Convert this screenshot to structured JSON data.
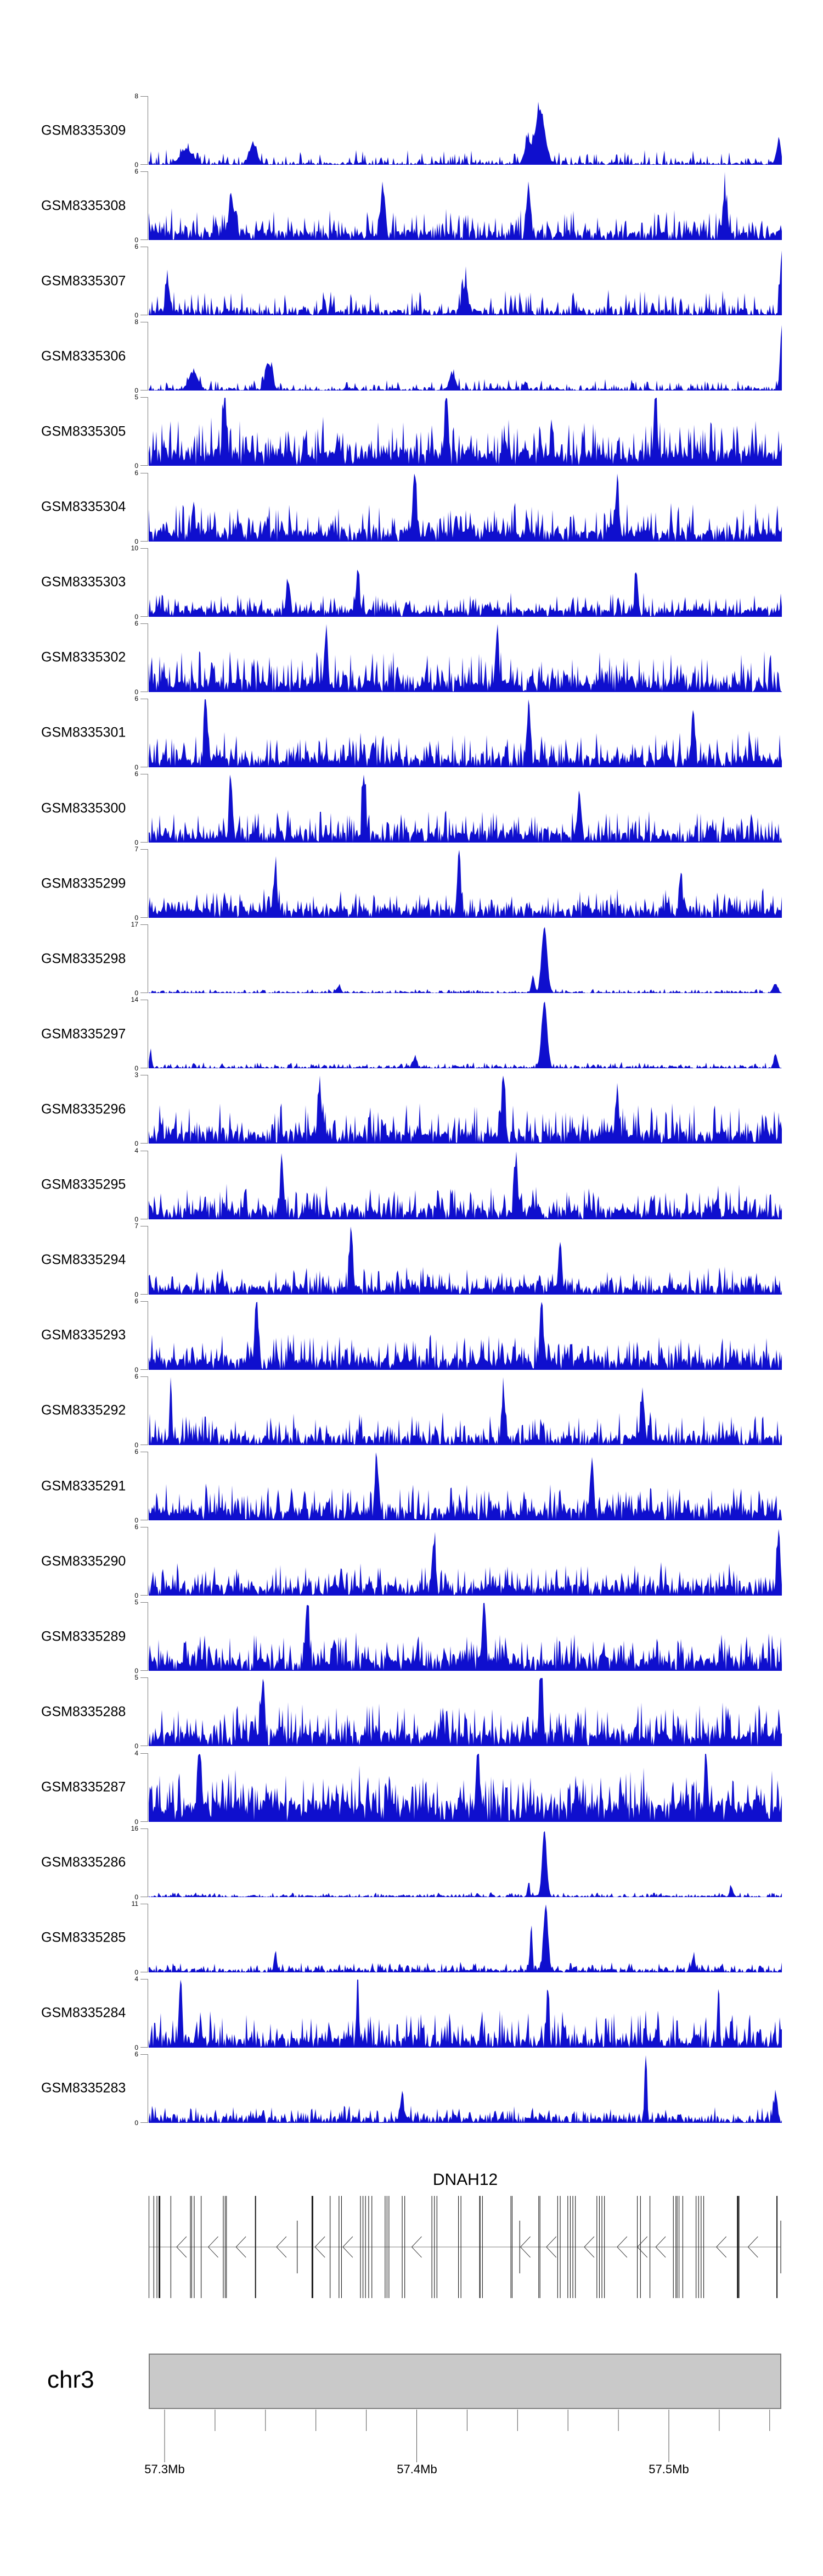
{
  "chart_data": {
    "type": "area",
    "title": "",
    "description": "Stacked genomic read-coverage tracks (27 GEO samples) over the DNAH12 locus on chr3, with per-track y-axis maxima, a gene exon-structure track (minus strand), a gray chromosome ideogram bar and a genomic coordinate axis.",
    "signal_color": "#0f0fce",
    "axis_color": "#808080",
    "region": {
      "chromosome_label": "chr3",
      "tick_labels": [
        "57.3Mb",
        "57.4Mb",
        "57.5Mb"
      ],
      "major_ticks_mb": [
        57.3,
        57.4,
        57.5
      ],
      "minor_tick_interval_mb": 0.02,
      "xlim_mb": [
        57.294,
        57.545
      ]
    },
    "tracks": [
      {
        "label": "GSM8335309",
        "ymax": 8,
        "ymin": 0,
        "seed": 114,
        "base": 0.32,
        "amp": 1.5,
        "gap": 0.38,
        "peaks": [
          [
            0.618,
            6.2,
            9
          ],
          [
            0.598,
            2.6,
            5
          ],
          [
            0.165,
            2.3,
            7
          ],
          [
            0.06,
            1.6,
            12
          ],
          [
            0.995,
            2.6,
            4
          ]
        ]
      },
      {
        "label": "GSM8335308",
        "ymax": 6,
        "ymin": 0,
        "seed": 127,
        "base": 0.75,
        "amp": 2.1,
        "gap": 0.15,
        "peaks": [
          [
            0.37,
            4.3,
            4
          ],
          [
            0.13,
            3.8,
            4
          ],
          [
            0.6,
            4.0,
            4
          ],
          [
            0.91,
            3.6,
            4
          ]
        ]
      },
      {
        "label": "GSM8335307",
        "ymax": 6,
        "ymin": 0,
        "seed": 140,
        "base": 0.55,
        "amp": 1.8,
        "gap": 0.3,
        "peaks": [
          [
            1.0,
            5.6,
            3
          ],
          [
            0.03,
            2.6,
            4
          ],
          [
            0.5,
            2.5,
            5
          ]
        ]
      },
      {
        "label": "GSM8335306",
        "ymax": 8,
        "ymin": 0,
        "seed": 153,
        "base": 0.3,
        "amp": 1.1,
        "gap": 0.4,
        "peaks": [
          [
            1.0,
            7.6,
            3
          ],
          [
            0.19,
            2.9,
            6
          ],
          [
            0.07,
            2.0,
            8
          ],
          [
            0.48,
            1.6,
            6
          ]
        ]
      },
      {
        "label": "GSM8335305",
        "ymax": 5,
        "ymin": 0,
        "seed": 166,
        "base": 1.15,
        "amp": 2.5,
        "gap": 0.08,
        "peaks": [
          [
            0.12,
            4.4,
            3
          ],
          [
            0.47,
            4.6,
            3
          ],
          [
            0.8,
            4.2,
            3
          ]
        ]
      },
      {
        "label": "GSM8335304",
        "ymax": 6,
        "ymin": 0,
        "seed": 179,
        "base": 1.05,
        "amp": 2.5,
        "gap": 0.1,
        "peaks": [
          [
            0.42,
            5.3,
            3
          ],
          [
            0.74,
            4.6,
            3
          ]
        ]
      },
      {
        "label": "GSM8335303",
        "ymax": 10,
        "ymin": 0,
        "seed": 192,
        "base": 1.15,
        "amp": 2.5,
        "gap": 0.1,
        "peaks": [
          [
            0.33,
            6.2,
            3
          ],
          [
            0.77,
            5.6,
            3
          ],
          [
            0.22,
            5.0,
            3
          ]
        ]
      },
      {
        "label": "GSM8335302",
        "ymax": 6,
        "ymin": 0,
        "seed": 205,
        "base": 1.05,
        "amp": 2.7,
        "gap": 0.1,
        "peaks": [
          [
            0.55,
            5.0,
            3
          ],
          [
            0.28,
            4.6,
            3
          ]
        ]
      },
      {
        "label": "GSM8335301",
        "ymax": 6,
        "ymin": 0,
        "seed": 218,
        "base": 0.95,
        "amp": 2.3,
        "gap": 0.12,
        "peaks": [
          [
            0.09,
            5.6,
            3
          ],
          [
            0.6,
            5.2,
            3
          ],
          [
            0.86,
            4.6,
            3
          ]
        ]
      },
      {
        "label": "GSM8335300",
        "ymax": 6,
        "ymin": 0,
        "seed": 231,
        "base": 0.9,
        "amp": 2.1,
        "gap": 0.15,
        "peaks": [
          [
            0.34,
            5.4,
            3
          ],
          [
            0.13,
            4.6,
            3
          ],
          [
            0.68,
            4.2,
            3
          ]
        ]
      },
      {
        "label": "GSM8335299",
        "ymax": 7,
        "ymin": 0,
        "seed": 244,
        "base": 0.95,
        "amp": 2.1,
        "gap": 0.12,
        "peaks": [
          [
            0.49,
            6.4,
            3
          ],
          [
            0.2,
            4.4,
            3
          ],
          [
            0.84,
            4.2,
            3
          ]
        ]
      },
      {
        "label": "GSM8335298",
        "ymax": 17,
        "ymin": 0,
        "seed": 257,
        "base": 0.35,
        "amp": 0.75,
        "gap": 0.3,
        "peaks": [
          [
            0.625,
            16.3,
            5
          ],
          [
            0.607,
            3.8,
            3
          ],
          [
            0.99,
            2.2,
            4
          ],
          [
            0.3,
            1.4,
            4
          ]
        ]
      },
      {
        "label": "GSM8335297",
        "ymax": 14,
        "ymin": 0,
        "seed": 270,
        "base": 0.45,
        "amp": 0.95,
        "gap": 0.3,
        "peaks": [
          [
            0.625,
            13.4,
            5
          ],
          [
            0.003,
            3.8,
            2
          ],
          [
            0.99,
            2.6,
            3
          ],
          [
            0.42,
            1.8,
            4
          ]
        ]
      },
      {
        "label": "GSM8335296",
        "ymax": 3,
        "ymin": 0,
        "seed": 283,
        "base": 0.55,
        "amp": 1.3,
        "gap": 0.15,
        "peaks": [
          [
            0.56,
            2.7,
            3
          ],
          [
            0.27,
            2.3,
            3
          ],
          [
            0.74,
            2.2,
            3
          ]
        ]
      },
      {
        "label": "GSM8335295",
        "ymax": 4,
        "ymin": 0,
        "seed": 296,
        "base": 0.65,
        "amp": 1.5,
        "gap": 0.15,
        "peaks": [
          [
            0.21,
            3.2,
            3
          ],
          [
            0.58,
            3.0,
            3
          ]
        ]
      },
      {
        "label": "GSM8335294",
        "ymax": 7,
        "ymin": 0,
        "seed": 309,
        "base": 0.95,
        "amp": 2.1,
        "gap": 0.12,
        "peaks": [
          [
            0.32,
            6.4,
            3
          ],
          [
            0.65,
            4.8,
            3
          ]
        ]
      },
      {
        "label": "GSM8335293",
        "ymax": 6,
        "ymin": 0,
        "seed": 322,
        "base": 1.05,
        "amp": 2.3,
        "gap": 0.1,
        "peaks": [
          [
            0.17,
            5.2,
            3
          ],
          [
            0.62,
            5.0,
            3
          ]
        ]
      },
      {
        "label": "GSM8335292",
        "ymax": 6,
        "ymin": 0,
        "seed": 335,
        "base": 0.85,
        "amp": 2.1,
        "gap": 0.15,
        "peaks": [
          [
            0.035,
            5.6,
            2
          ],
          [
            0.56,
            4.4,
            3
          ],
          [
            0.78,
            4.2,
            3
          ]
        ]
      },
      {
        "label": "GSM8335291",
        "ymax": 6,
        "ymin": 0,
        "seed": 348,
        "base": 1.05,
        "amp": 2.3,
        "gap": 0.1,
        "peaks": [
          [
            0.36,
            5.2,
            3
          ],
          [
            0.7,
            4.8,
            3
          ]
        ]
      },
      {
        "label": "GSM8335290",
        "ymax": 6,
        "ymin": 0,
        "seed": 361,
        "base": 0.95,
        "amp": 2.1,
        "gap": 0.12,
        "peaks": [
          [
            0.995,
            5.2,
            3
          ],
          [
            0.45,
            4.6,
            3
          ]
        ]
      },
      {
        "label": "GSM8335289",
        "ymax": 5,
        "ymin": 0,
        "seed": 374,
        "base": 0.95,
        "amp": 2.1,
        "gap": 0.1,
        "peaks": [
          [
            0.53,
            4.7,
            3
          ],
          [
            0.25,
            4.2,
            3
          ]
        ]
      },
      {
        "label": "GSM8335288",
        "ymax": 5,
        "ymin": 0,
        "seed": 387,
        "base": 1.05,
        "amp": 2.3,
        "gap": 0.08,
        "peaks": [
          [
            0.62,
            4.6,
            3
          ],
          [
            0.18,
            4.2,
            3
          ]
        ]
      },
      {
        "label": "GSM8335287",
        "ymax": 4,
        "ymin": 0,
        "seed": 400,
        "base": 1.25,
        "amp": 2.1,
        "gap": 0.06,
        "peaks": [
          [
            0.08,
            3.8,
            3
          ],
          [
            0.52,
            3.7,
            3
          ],
          [
            0.88,
            3.7,
            3
          ]
        ]
      },
      {
        "label": "GSM8335286",
        "ymax": 16,
        "ymin": 0,
        "seed": 413,
        "base": 0.4,
        "amp": 0.85,
        "gap": 0.25,
        "peaks": [
          [
            0.625,
            15.4,
            4
          ],
          [
            0.6,
            3.2,
            2
          ],
          [
            0.92,
            2.2,
            3
          ]
        ]
      },
      {
        "label": "GSM8335285",
        "ymax": 11,
        "ymin": 0,
        "seed": 426,
        "base": 0.55,
        "amp": 1.15,
        "gap": 0.2,
        "peaks": [
          [
            0.627,
            10.6,
            4
          ],
          [
            0.604,
            6.8,
            2
          ],
          [
            0.2,
            2.8,
            2
          ],
          [
            0.86,
            2.4,
            3
          ]
        ]
      },
      {
        "label": "GSM8335284",
        "ymax": 4,
        "ymin": 0,
        "seed": 439,
        "base": 0.65,
        "amp": 1.7,
        "gap": 0.15,
        "peaks": [
          [
            0.05,
            3.7,
            2
          ],
          [
            0.33,
            3.7,
            2
          ],
          [
            0.63,
            3.4,
            2
          ],
          [
            0.9,
            3.0,
            2
          ]
        ]
      },
      {
        "label": "GSM8335283",
        "ymax": 6,
        "ymin": 0,
        "seed": 452,
        "base": 0.5,
        "amp": 1.1,
        "gap": 0.2,
        "peaks": [
          [
            0.785,
            5.7,
            2
          ],
          [
            0.99,
            2.4,
            3
          ],
          [
            0.4,
            2.0,
            3
          ]
        ]
      }
    ],
    "gene_track": {
      "name": "DNAH12",
      "strand": "-",
      "exons": [
        [
          0.0,
          "t",
          2
        ],
        [
          0.008,
          "t",
          1
        ],
        [
          0.013,
          "t",
          1
        ],
        [
          0.017,
          "t",
          3
        ],
        [
          0.035,
          "t",
          1
        ],
        [
          0.066,
          "t",
          1
        ],
        [
          0.068,
          "t",
          1
        ],
        [
          0.072,
          "t",
          1
        ],
        [
          0.083,
          "t",
          1
        ],
        [
          0.118,
          "t",
          1
        ],
        [
          0.121,
          "t",
          1
        ],
        [
          0.123,
          "t",
          1
        ],
        [
          0.169,
          "t",
          2
        ],
        [
          0.235,
          "s",
          1
        ],
        [
          0.259,
          "t",
          3
        ],
        [
          0.287,
          "t",
          1
        ],
        [
          0.301,
          "t",
          1
        ],
        [
          0.305,
          "t",
          1
        ],
        [
          0.335,
          "t",
          1
        ],
        [
          0.339,
          "t",
          1
        ],
        [
          0.343,
          "t",
          1
        ],
        [
          0.348,
          "t",
          1
        ],
        [
          0.353,
          "t",
          1
        ],
        [
          0.374,
          "t",
          1
        ],
        [
          0.377,
          "t",
          1
        ],
        [
          0.38,
          "t",
          1
        ],
        [
          0.401,
          "t",
          1
        ],
        [
          0.405,
          "t",
          1
        ],
        [
          0.448,
          "t",
          1
        ],
        [
          0.452,
          "t",
          1
        ],
        [
          0.456,
          "t",
          1
        ],
        [
          0.49,
          "t",
          1
        ],
        [
          0.494,
          "t",
          1
        ],
        [
          0.524,
          "t",
          2
        ],
        [
          0.528,
          "t",
          1
        ],
        [
          0.573,
          "t",
          1
        ],
        [
          0.575,
          "t",
          1
        ],
        [
          0.587,
          "s",
          1
        ],
        [
          0.617,
          "t",
          1
        ],
        [
          0.619,
          "t",
          1
        ],
        [
          0.647,
          "t",
          1
        ],
        [
          0.651,
          "t",
          1
        ],
        [
          0.663,
          "t",
          1
        ],
        [
          0.667,
          "t",
          1
        ],
        [
          0.671,
          "t",
          1
        ],
        [
          0.675,
          "t",
          1
        ],
        [
          0.709,
          "t",
          1
        ],
        [
          0.713,
          "t",
          1
        ],
        [
          0.717,
          "t",
          1
        ],
        [
          0.721,
          "t",
          1
        ],
        [
          0.773,
          "t",
          1
        ],
        [
          0.778,
          "t",
          1
        ],
        [
          0.793,
          "t",
          1
        ],
        [
          0.83,
          "t",
          1
        ],
        [
          0.834,
          "t",
          1
        ],
        [
          0.836,
          "t",
          1
        ],
        [
          0.839,
          "t",
          1
        ],
        [
          0.845,
          "t",
          1
        ],
        [
          0.866,
          "t",
          1
        ],
        [
          0.87,
          "t",
          1
        ],
        [
          0.874,
          "t",
          1
        ],
        [
          0.878,
          "t",
          1
        ],
        [
          0.932,
          "t",
          3
        ],
        [
          0.934,
          "t",
          1
        ],
        [
          0.994,
          "t",
          2
        ],
        [
          1.0,
          "s",
          1
        ]
      ],
      "arrows": [
        0.052,
        0.102,
        0.146,
        0.21,
        0.271,
        0.315,
        0.424,
        0.596,
        0.637,
        0.697,
        0.749,
        0.781,
        0.81,
        0.906,
        0.956
      ]
    },
    "ideogram": {
      "label": "chr3",
      "fill": "#c9c9c9",
      "border": "#7e7e7e"
    }
  }
}
